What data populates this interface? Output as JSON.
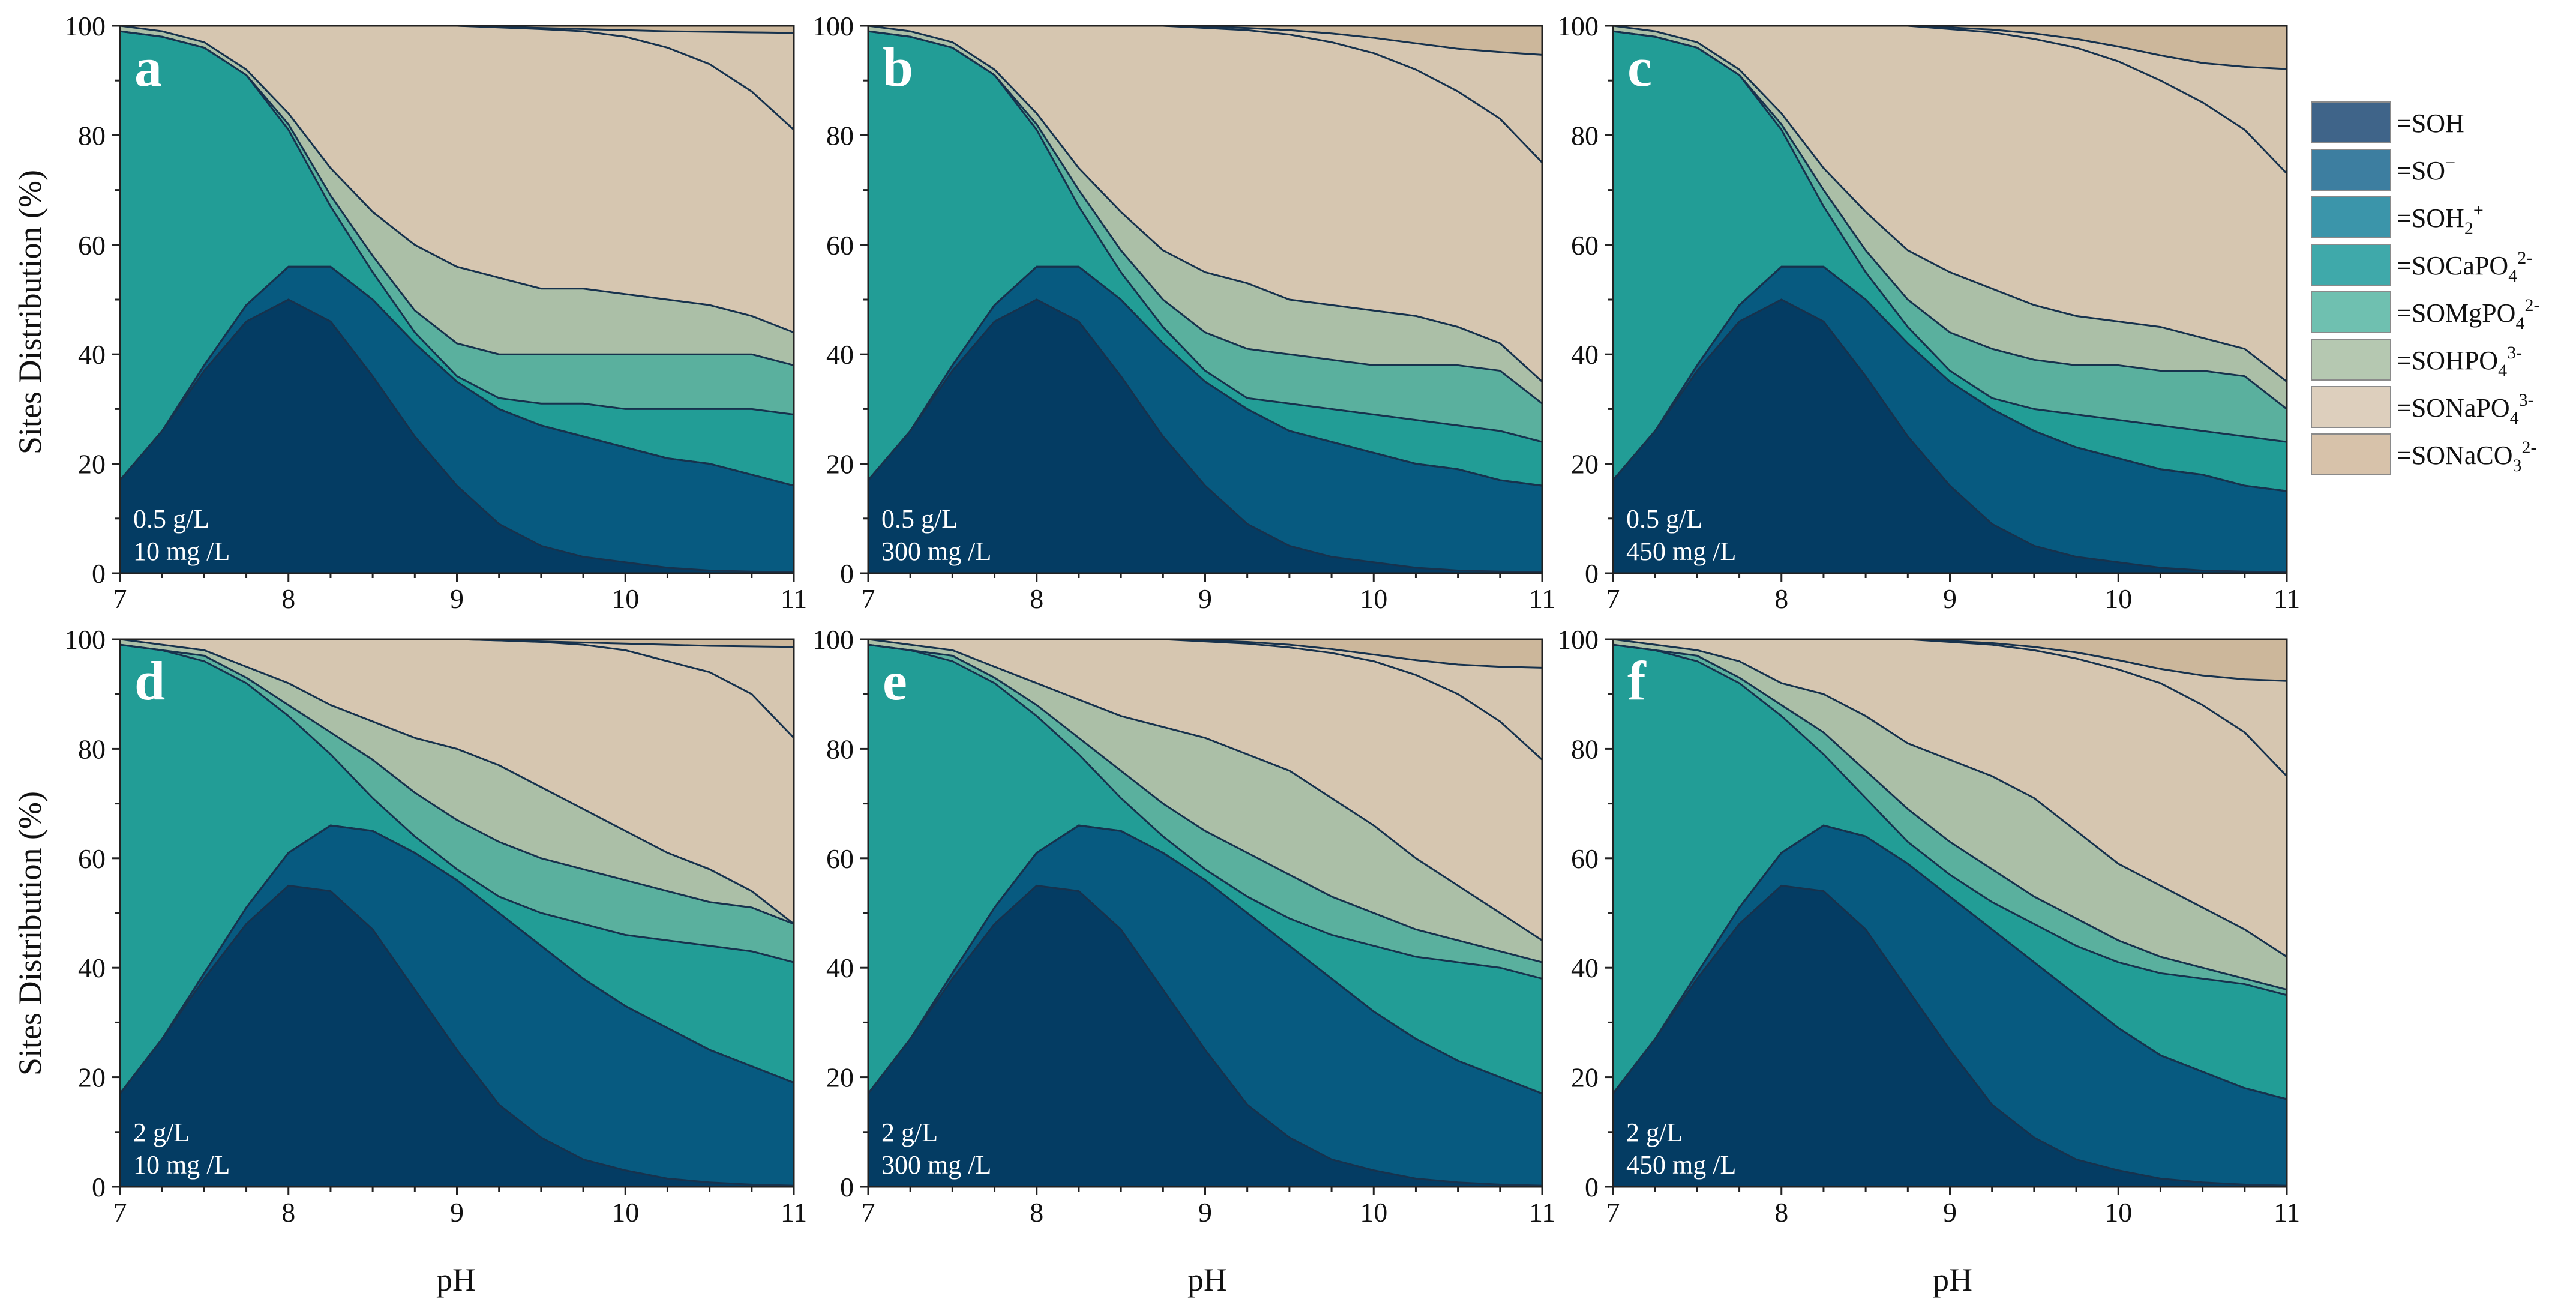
{
  "legend": {
    "items": [
      {
        "key": "SOH",
        "label": "=SOH",
        "sup": "",
        "sub": "",
        "color": "#3f6489"
      },
      {
        "key": "SO",
        "label": "=SO",
        "sup": "−",
        "sub": "",
        "color": "#3d7ea0"
      },
      {
        "key": "SOH2",
        "label": "=SOH",
        "sub": "2",
        "sup": "+",
        "color": "#3b95aa"
      },
      {
        "key": "SOCaPO4",
        "label": "=SOCaPO",
        "sub": "4",
        "sup": "2-",
        "color": "#3fa9aa"
      },
      {
        "key": "SOMgPO4",
        "label": "=SOMgPO",
        "sub": "4",
        "sup": "2-",
        "color": "#6fc0b0"
      },
      {
        "key": "SOHPO4",
        "label": "=SOHPO",
        "sub": "4",
        "sup": "3-",
        "color": "#b5c8b1"
      },
      {
        "key": "SONaPO4",
        "label": "=SONaPO",
        "sub": "4",
        "sup": "3-",
        "color": "#ddcfbd"
      },
      {
        "key": "SONaCO3",
        "label": "=SONaCO",
        "sub": "3",
        "sup": "2-",
        "color": "#d7c2aa"
      }
    ]
  },
  "axes": {
    "xlabel": "pH",
    "ylabel": "Sites Distribution (%)",
    "xticks": [
      "7",
      "8",
      "9",
      "10",
      "11"
    ],
    "yticks": [
      "0",
      "20",
      "40",
      "60",
      "80",
      "100"
    ]
  },
  "chart_data": [
    {
      "panel": "a",
      "type": "area",
      "dose": "0.5 g/L",
      "conc": "10 mg /L",
      "xlim": [
        7,
        11
      ],
      "ylim": [
        0,
        100
      ],
      "x": [
        7,
        7.25,
        7.5,
        7.75,
        8,
        8.25,
        8.5,
        8.75,
        9,
        9.25,
        9.5,
        9.75,
        10,
        10.25,
        10.5,
        10.75,
        11
      ],
      "boundaries": [
        [
          17,
          26,
          37,
          46,
          50,
          46,
          36,
          25,
          16,
          9,
          5,
          3,
          2,
          1,
          0.5,
          0.3,
          0.2
        ],
        [
          17,
          26,
          38,
          49,
          56,
          56,
          50,
          42,
          35,
          30,
          27,
          25,
          23,
          21,
          20,
          18,
          16
        ],
        [
          17,
          26,
          38,
          49,
          56,
          56,
          50,
          42,
          35,
          30,
          27,
          25,
          23,
          21,
          20,
          18,
          16
        ],
        [
          99,
          98,
          96,
          91,
          81,
          67,
          55,
          44,
          36,
          32,
          31,
          31,
          30,
          30,
          30,
          30,
          29
        ],
        [
          99,
          98,
          96,
          91,
          82,
          69,
          58,
          48,
          42,
          40,
          40,
          40,
          40,
          40,
          40,
          40,
          38
        ],
        [
          100,
          99,
          97,
          92,
          84,
          74,
          66,
          60,
          56,
          54,
          52,
          52,
          51,
          50,
          49,
          47,
          44
        ],
        [
          100,
          100,
          100,
          100,
          100,
          100,
          100,
          100,
          100,
          99.8,
          99.6,
          99.4,
          99.2,
          99,
          98.9,
          98.8,
          98.7
        ],
        [
          100,
          100,
          100,
          100,
          100,
          100,
          100,
          100,
          100,
          99.7,
          99.4,
          99,
          98,
          96,
          93,
          88,
          81
        ]
      ]
    },
    {
      "panel": "b",
      "type": "area",
      "dose": "0.5 g/L",
      "conc": "300 mg /L",
      "xlim": [
        7,
        11
      ],
      "ylim": [
        0,
        100
      ],
      "x": [
        7,
        7.25,
        7.5,
        7.75,
        8,
        8.25,
        8.5,
        8.75,
        9,
        9.25,
        9.5,
        9.75,
        10,
        10.25,
        10.5,
        10.75,
        11
      ],
      "boundaries": [
        [
          17,
          26,
          37,
          46,
          50,
          46,
          36,
          25,
          16,
          9,
          5,
          3,
          2,
          1,
          0.5,
          0.3,
          0.2
        ],
        [
          17,
          26,
          38,
          49,
          56,
          56,
          50,
          42,
          35,
          30,
          26,
          24,
          22,
          20,
          19,
          17,
          16
        ],
        [
          17,
          26,
          38,
          49,
          56,
          56,
          50,
          42,
          35,
          30,
          26,
          24,
          22,
          20,
          19,
          17,
          16
        ],
        [
          99,
          98,
          96,
          91,
          81,
          67,
          55,
          45,
          37,
          32,
          31,
          30,
          29,
          28,
          27,
          26,
          24
        ],
        [
          99,
          98,
          96,
          91,
          82,
          70,
          59,
          50,
          44,
          41,
          40,
          39,
          38,
          38,
          38,
          37,
          31
        ],
        [
          100,
          99,
          97,
          92,
          84,
          74,
          66,
          59,
          55,
          53,
          50,
          49,
          48,
          47,
          45,
          42,
          35
        ],
        [
          100,
          100,
          100,
          100,
          100,
          100,
          100,
          100,
          99.8,
          99.6,
          99.2,
          98.6,
          97.8,
          96.8,
          95.8,
          95.2,
          94.7
        ],
        [
          100,
          100,
          100,
          100,
          100,
          100,
          100,
          100,
          99.6,
          99.2,
          98.4,
          97,
          95,
          92,
          88,
          83,
          75
        ]
      ]
    },
    {
      "panel": "c",
      "type": "area",
      "dose": "0.5 g/L",
      "conc": "450 mg /L",
      "xlim": [
        7,
        11
      ],
      "ylim": [
        0,
        100
      ],
      "x": [
        7,
        7.25,
        7.5,
        7.75,
        8,
        8.25,
        8.5,
        8.75,
        9,
        9.25,
        9.5,
        9.75,
        10,
        10.25,
        10.5,
        10.75,
        11
      ],
      "boundaries": [
        [
          17,
          26,
          37,
          46,
          50,
          46,
          36,
          25,
          16,
          9,
          5,
          3,
          2,
          1,
          0.5,
          0.3,
          0.2
        ],
        [
          17,
          26,
          38,
          49,
          56,
          56,
          50,
          42,
          35,
          30,
          26,
          23,
          21,
          19,
          18,
          16,
          15
        ],
        [
          17,
          26,
          38,
          49,
          56,
          56,
          50,
          42,
          35,
          30,
          26,
          23,
          21,
          19,
          18,
          16,
          15
        ],
        [
          99,
          98,
          96,
          91,
          81,
          67,
          55,
          45,
          37,
          32,
          30,
          29,
          28,
          27,
          26,
          25,
          24
        ],
        [
          99,
          98,
          96,
          91,
          82,
          70,
          59,
          50,
          44,
          41,
          39,
          38,
          38,
          37,
          37,
          36,
          30
        ],
        [
          100,
          99,
          97,
          92,
          84,
          74,
          66,
          59,
          55,
          52,
          49,
          47,
          46,
          45,
          43,
          41,
          35
        ],
        [
          100,
          100,
          100,
          100,
          100,
          100,
          100,
          100,
          99.7,
          99.3,
          98.6,
          97.6,
          96.2,
          94.6,
          93.2,
          92.5,
          92.1
        ],
        [
          100,
          100,
          100,
          100,
          100,
          100,
          100,
          100,
          99.4,
          98.8,
          97.6,
          96,
          93.5,
          90,
          86,
          81,
          73
        ]
      ]
    },
    {
      "panel": "d",
      "type": "area",
      "dose": "2 g/L",
      "conc": "10 mg /L",
      "xlim": [
        7,
        11
      ],
      "ylim": [
        0,
        100
      ],
      "x": [
        7,
        7.25,
        7.5,
        7.75,
        8,
        8.25,
        8.5,
        8.75,
        9,
        9.25,
        9.5,
        9.75,
        10,
        10.25,
        10.5,
        10.75,
        11
      ],
      "boundaries": [
        [
          17,
          27,
          38,
          48,
          55,
          54,
          47,
          36,
          25,
          15,
          9,
          5,
          3,
          1.5,
          0.8,
          0.4,
          0.2
        ],
        [
          17,
          27,
          39,
          51,
          61,
          66,
          65,
          61,
          56,
          50,
          44,
          38,
          33,
          29,
          25,
          22,
          19
        ],
        [
          17,
          27,
          39,
          51,
          61,
          66,
          65,
          61,
          56,
          50,
          44,
          38,
          33,
          29,
          25,
          22,
          19
        ],
        [
          99,
          98,
          96,
          92,
          86,
          79,
          71,
          64,
          58,
          53,
          50,
          48,
          46,
          45,
          44,
          43,
          41
        ],
        [
          99,
          98,
          97,
          93,
          88,
          83,
          78,
          72,
          67,
          63,
          60,
          58,
          56,
          54,
          52,
          51,
          48
        ],
        [
          100,
          99,
          98,
          95,
          92,
          88,
          85,
          82,
          80,
          77,
          73,
          69,
          65,
          61,
          58,
          54,
          48
        ],
        [
          100,
          100,
          100,
          100,
          100,
          100,
          100,
          100,
          100,
          99.8,
          99.6,
          99.4,
          99.2,
          99,
          98.8,
          98.7,
          98.6
        ],
        [
          100,
          100,
          100,
          100,
          100,
          100,
          100,
          100,
          100,
          99.8,
          99.5,
          99,
          98,
          96,
          94,
          90,
          82
        ]
      ]
    },
    {
      "panel": "e",
      "type": "area",
      "dose": "2 g/L",
      "conc": "300 mg /L",
      "xlim": [
        7,
        11
      ],
      "ylim": [
        0,
        100
      ],
      "x": [
        7,
        7.25,
        7.5,
        7.75,
        8,
        8.25,
        8.5,
        8.75,
        9,
        9.25,
        9.5,
        9.75,
        10,
        10.25,
        10.5,
        10.75,
        11
      ],
      "boundaries": [
        [
          17,
          27,
          38,
          48,
          55,
          54,
          47,
          36,
          25,
          15,
          9,
          5,
          3,
          1.5,
          0.8,
          0.4,
          0.2
        ],
        [
          17,
          27,
          39,
          51,
          61,
          66,
          65,
          61,
          56,
          50,
          44,
          38,
          32,
          27,
          23,
          20,
          17
        ],
        [
          17,
          27,
          39,
          51,
          61,
          66,
          65,
          61,
          56,
          50,
          44,
          38,
          32,
          27,
          23,
          20,
          17
        ],
        [
          99,
          98,
          96,
          92,
          86,
          79,
          71,
          64,
          58,
          53,
          49,
          46,
          44,
          42,
          41,
          40,
          38
        ],
        [
          99,
          98,
          97,
          93,
          88,
          82,
          76,
          70,
          65,
          61,
          57,
          53,
          50,
          47,
          45,
          43,
          41
        ],
        [
          100,
          99,
          98,
          95,
          92,
          89,
          86,
          84,
          82,
          79,
          76,
          71,
          66,
          60,
          55,
          50,
          45
        ],
        [
          100,
          100,
          100,
          100,
          100,
          100,
          100,
          100,
          99.8,
          99.5,
          99,
          98.2,
          97.2,
          96.2,
          95.4,
          95,
          94.8
        ],
        [
          100,
          100,
          100,
          100,
          100,
          100,
          100,
          100,
          99.6,
          99.2,
          98.5,
          97.5,
          96,
          93.5,
          90,
          85,
          78
        ]
      ]
    },
    {
      "panel": "f",
      "type": "area",
      "dose": "2 g/L",
      "conc": "450 mg /L",
      "xlim": [
        7,
        11
      ],
      "ylim": [
        0,
        100
      ],
      "x": [
        7,
        7.25,
        7.5,
        7.75,
        8,
        8.25,
        8.5,
        8.75,
        9,
        9.25,
        9.5,
        9.75,
        10,
        10.25,
        10.5,
        10.75,
        11
      ],
      "boundaries": [
        [
          17,
          27,
          38,
          48,
          55,
          54,
          47,
          36,
          25,
          15,
          9,
          5,
          3,
          1.5,
          0.8,
          0.4,
          0.2
        ],
        [
          17,
          27,
          39,
          51,
          61,
          66,
          64,
          59,
          53,
          47,
          41,
          35,
          29,
          24,
          21,
          18,
          16
        ],
        [
          17,
          27,
          39,
          51,
          61,
          66,
          64,
          59,
          53,
          47,
          41,
          35,
          29,
          24,
          21,
          18,
          16
        ],
        [
          99,
          98,
          96,
          92,
          86,
          79,
          71,
          63,
          57,
          52,
          48,
          44,
          41,
          39,
          38,
          37,
          35
        ],
        [
          99,
          98,
          97,
          93,
          88,
          83,
          76,
          69,
          63,
          58,
          53,
          49,
          45,
          42,
          40,
          38,
          36
        ],
        [
          100,
          99,
          98,
          96,
          92,
          90,
          86,
          81,
          78,
          75,
          71,
          65,
          59,
          55,
          51,
          47,
          42
        ],
        [
          100,
          100,
          100,
          100,
          100,
          100,
          100,
          100,
          99.7,
          99.3,
          98.6,
          97.6,
          96.2,
          94.6,
          93.4,
          92.7,
          92.4
        ],
        [
          100,
          100,
          100,
          100,
          100,
          100,
          100,
          100,
          99.5,
          99,
          98,
          96.5,
          94.5,
          92,
          88,
          83,
          75
        ]
      ]
    }
  ]
}
